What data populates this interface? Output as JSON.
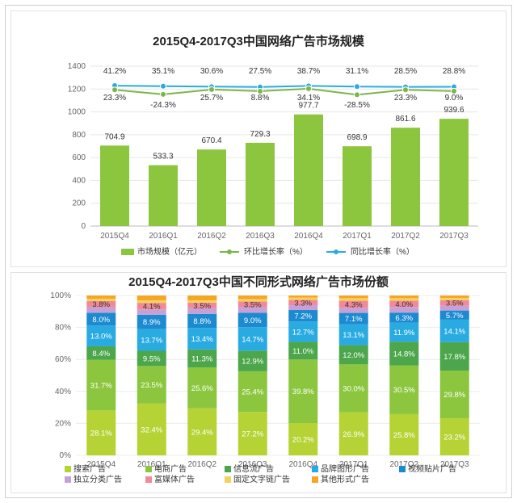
{
  "chart_data": [
    {
      "type": "bar",
      "title": "2015Q4-2017Q3中国网络广告市场规模",
      "categories": [
        "2015Q4",
        "2016Q1",
        "2016Q2",
        "2016Q3",
        "2016Q4",
        "2017Q1",
        "2017Q2",
        "2017Q3"
      ],
      "ylim": [
        0,
        1400
      ],
      "yticks": [
        "0",
        "200",
        "400",
        "600",
        "800",
        "1000",
        "1200",
        "1400"
      ],
      "series": [
        {
          "name": "市场规模（亿元）",
          "kind": "bar",
          "color": "#8cc63f",
          "values": [
            704.9,
            533.3,
            670.4,
            729.3,
            977.7,
            698.9,
            861.6,
            939.6
          ],
          "labels": [
            "704.9",
            "533.3",
            "670.4",
            "729.3",
            "977.7",
            "698.9",
            "861.6",
            "939.6"
          ]
        },
        {
          "name": "环比增长率（%）",
          "kind": "line",
          "color": "#7ab648",
          "values": [
            23.3,
            -24.3,
            25.7,
            8.8,
            34.1,
            -28.5,
            23.3,
            9.0
          ],
          "labels": [
            "23.3%",
            "-24.3%",
            "25.7%",
            "8.8%",
            "34.1%",
            "-28.5%",
            "23.3%",
            "9.0%"
          ]
        },
        {
          "name": "同比增长率（%）",
          "kind": "line",
          "color": "#29abe2",
          "values": [
            41.2,
            35.1,
            30.6,
            27.5,
            38.7,
            31.1,
            28.5,
            28.8
          ],
          "labels": [
            "41.2%",
            "35.1%",
            "30.6%",
            "27.5%",
            "38.7%",
            "31.1%",
            "28.5%",
            "28.8%"
          ]
        }
      ]
    },
    {
      "type": "bar",
      "stacked": true,
      "title": "2015Q4-2017Q3中国不同形式网络广告市场份额",
      "categories": [
        "2015Q4",
        "2016Q1",
        "2016Q2",
        "2016Q3",
        "2016Q4",
        "2017Q1",
        "2017Q2",
        "2017Q3"
      ],
      "ylim": [
        0,
        100
      ],
      "yticks": [
        "0%",
        "20%",
        "40%",
        "60%",
        "80%",
        "100%"
      ],
      "series": [
        {
          "name": "搜索广告",
          "color": "#b5d334",
          "values": [
            28.1,
            32.4,
            29.4,
            27.2,
            20.2,
            26.9,
            25.8,
            23.2
          ],
          "labels": [
            "28.1%",
            "32.4%",
            "29.4%",
            "27.2%",
            "20.2%",
            "26.9%",
            "25.8%",
            "23.2%"
          ]
        },
        {
          "name": "电商广告",
          "color": "#8cc63f",
          "values": [
            31.7,
            23.5,
            25.6,
            25.4,
            39.8,
            30.0,
            30.5,
            29.8
          ],
          "labels": [
            "31.7%",
            "23.5%",
            "25.6%",
            "25.4%",
            "39.8%",
            "30.0%",
            "30.5%",
            "29.8%"
          ]
        },
        {
          "name": "信息流广告",
          "color": "#4ca64c",
          "values": [
            8.4,
            9.5,
            11.3,
            12.9,
            11.0,
            12.0,
            14.8,
            17.8
          ],
          "labels": [
            "8.4%",
            "9.5%",
            "11.3%",
            "12.9%",
            "11.0%",
            "12.0%",
            "14.8%",
            "17.8%"
          ]
        },
        {
          "name": "品牌图形广告",
          "color": "#29abe2",
          "values": [
            13.0,
            13.7,
            13.4,
            14.7,
            12.7,
            13.1,
            11.9,
            14.1
          ],
          "labels": [
            "13.0%",
            "13.7%",
            "13.4%",
            "14.7%",
            "12.7%",
            "13.1%",
            "11.9%",
            "14.1%"
          ]
        },
        {
          "name": "视频贴片广告",
          "color": "#1b8ad1",
          "values": [
            8.0,
            8.9,
            8.8,
            9.0,
            7.2,
            7.1,
            6.3,
            5.7
          ],
          "labels": [
            "8.0%",
            "8.9%",
            "8.8%",
            "9.0%",
            "7.2%",
            "7.1%",
            "6.3%",
            "5.7%"
          ]
        },
        {
          "name": "独立分类广告",
          "color": "#c7a0d6",
          "values": [
            3.5,
            3.3,
            3.5,
            3.5,
            3.0,
            3.3,
            3.5,
            3.0
          ],
          "labels": [
            "",
            "",
            "",
            "",
            "",
            "",
            "",
            ""
          ]
        },
        {
          "name": "富媒体广告",
          "color": "#f08a9a",
          "values": [
            3.8,
            4.1,
            3.5,
            3.5,
            3.3,
            4.3,
            4.0,
            3.5
          ],
          "labels": [
            "3.8%",
            "4.1%",
            "3.5%",
            "3.5%",
            "3.3%",
            "4.3%",
            "4.0%",
            "3.5%"
          ]
        },
        {
          "name": "固定文字链广告",
          "color": "#f7d25a",
          "values": [
            1.5,
            1.6,
            1.5,
            1.6,
            1.5,
            1.6,
            1.5,
            1.4
          ],
          "labels": [
            "",
            "",
            "",
            "",
            "",
            "",
            "",
            ""
          ]
        },
        {
          "name": "其他形式广告",
          "color": "#f5a623",
          "values": [
            2.0,
            3.0,
            3.0,
            2.2,
            1.3,
            1.7,
            1.7,
            1.5
          ],
          "labels": [
            "",
            "",
            "",
            "",
            "",
            "",
            "",
            ""
          ]
        }
      ]
    }
  ]
}
